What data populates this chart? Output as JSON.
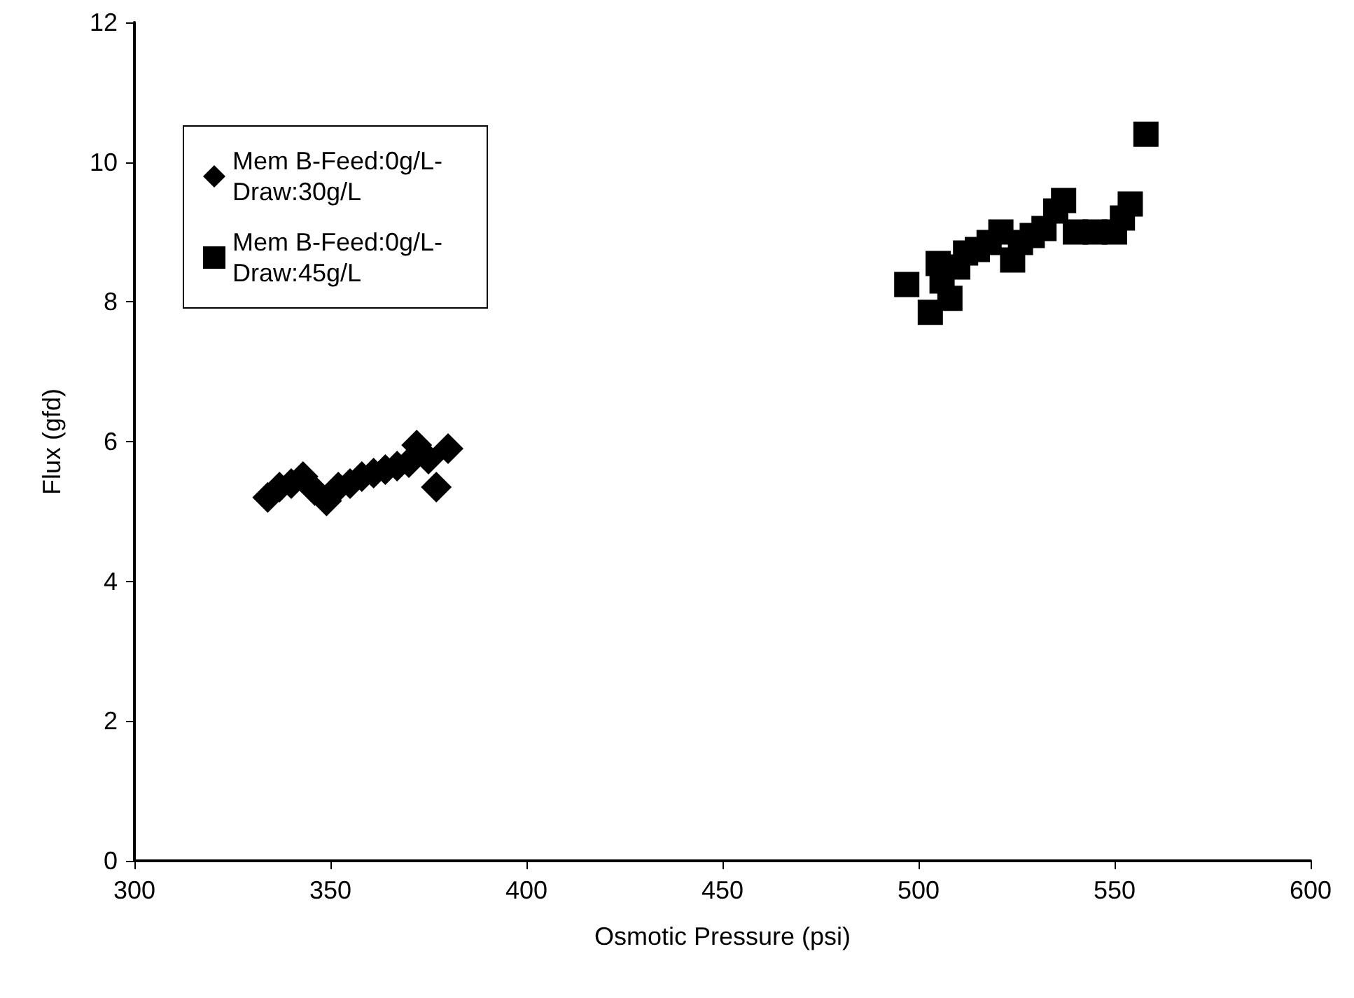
{
  "chart_data": {
    "type": "scatter",
    "xlabel": "Osmotic Pressure (psi)",
    "ylabel": "Flux (gfd)",
    "xlim": [
      300,
      600
    ],
    "xticks": [
      300,
      350,
      400,
      450,
      500,
      550,
      600
    ],
    "ylim": [
      0,
      12
    ],
    "yticks": [
      0,
      2,
      4,
      6,
      8,
      10,
      12
    ],
    "grid": false,
    "legend": "top left",
    "series": [
      {
        "name": "Mem B-Feed:0g/L-Draw:30g/L",
        "color": "#000000",
        "marker": "diamond",
        "x": [
          334,
          337,
          340,
          343,
          346,
          349,
          352,
          355,
          358,
          361,
          364,
          367,
          370,
          372,
          375,
          377,
          380
        ],
        "values": [
          5.2,
          5.35,
          5.4,
          5.5,
          5.3,
          5.15,
          5.35,
          5.4,
          5.5,
          5.55,
          5.6,
          5.65,
          5.7,
          5.95,
          5.75,
          5.35,
          5.9
        ]
      },
      {
        "name": "Mem B-Feed:0g/L-Draw:45g/L",
        "color": "#000000",
        "marker": "square",
        "x": [
          497,
          503,
          505,
          506,
          508,
          510,
          512,
          515,
          518,
          521,
          524,
          526,
          529,
          532,
          535,
          537,
          540,
          545,
          550,
          552,
          554,
          558
        ],
        "values": [
          8.25,
          7.85,
          8.55,
          8.3,
          8.05,
          8.5,
          8.7,
          8.75,
          8.85,
          9.0,
          8.6,
          8.85,
          8.95,
          9.05,
          9.3,
          9.45,
          9.0,
          9.0,
          9.0,
          9.2,
          9.4,
          10.4
        ]
      }
    ]
  }
}
